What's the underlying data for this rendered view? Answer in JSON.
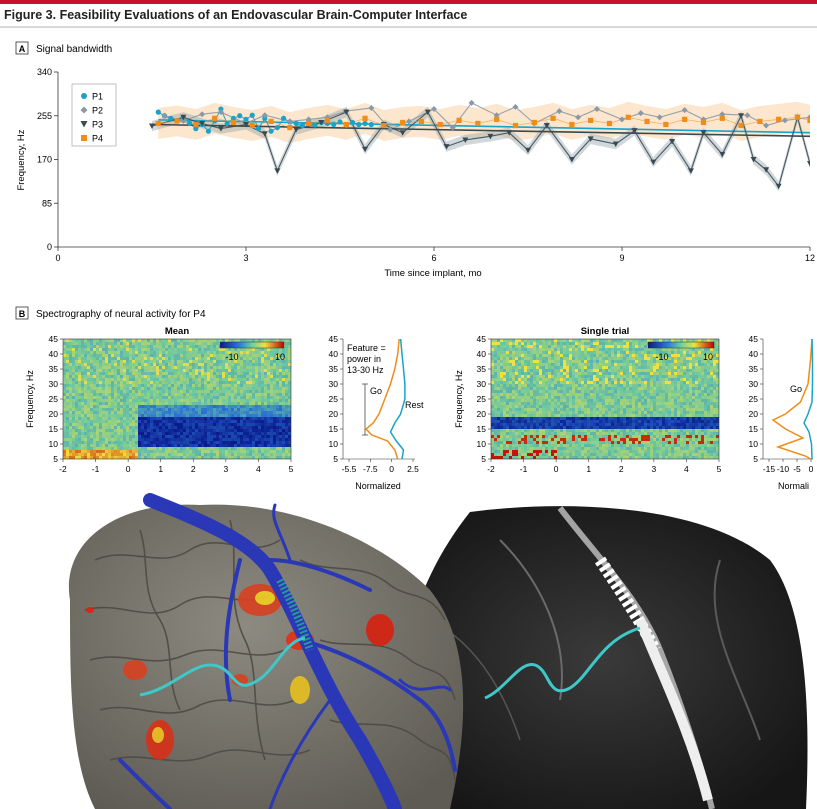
{
  "figure": {
    "title": "Figure 3. Feasibility Evaluations of an Endovascular Brain-Computer Interface",
    "accent_color": "#c8102e"
  },
  "panel_a": {
    "letter": "A",
    "heading": "Signal bandwidth",
    "chart_data": {
      "type": "line",
      "xlabel": "Time since implant, mo",
      "ylabel": "Frequency, Hz",
      "xlim": [
        0,
        12
      ],
      "ylim": [
        0,
        340
      ],
      "x_ticks": [
        0,
        3,
        6,
        9,
        12
      ],
      "y_ticks": [
        0,
        85,
        170,
        255,
        340
      ],
      "legend_placement": "top-left",
      "series": [
        {
          "name": "P1",
          "color": "#1aa3c8",
          "marker": "circle",
          "x": [
            1.6,
            1.7,
            1.8,
            1.9,
            2.0,
            2.1,
            2.2,
            2.3,
            2.4,
            2.5,
            2.6,
            2.7,
            2.8,
            2.9,
            3.0,
            3.1,
            3.2,
            3.3,
            3.4,
            3.5,
            3.6,
            3.7,
            3.8,
            3.9,
            4.0,
            4.1,
            4.2,
            4.3,
            4.4,
            4.5,
            4.6,
            4.7,
            4.8,
            4.9,
            5.0
          ],
          "y": [
            262,
            255,
            250,
            245,
            252,
            240,
            230,
            238,
            225,
            245,
            268,
            240,
            250,
            255,
            248,
            256,
            230,
            250,
            225,
            232,
            250,
            243,
            240,
            236,
            244,
            237,
            242,
            240,
            238,
            243,
            236,
            242,
            238,
            240,
            238
          ],
          "trend": [
            [
              1.6,
              247
            ],
            [
              12,
              222
            ]
          ]
        },
        {
          "name": "P2",
          "color": "#8a99a8",
          "marker": "diamond",
          "x": [
            1.7,
            2.0,
            2.3,
            2.6,
            3.0,
            3.3,
            3.7,
            4.0,
            4.3,
            4.6,
            5.0,
            5.3,
            5.6,
            6.0,
            6.3,
            6.6,
            7.0,
            7.3,
            7.6,
            8.0,
            8.3,
            8.6,
            9.0,
            9.3,
            9.6,
            10.0,
            10.3,
            10.6,
            11.0,
            11.3,
            11.6,
            12.0
          ],
          "y": [
            255,
            245,
            258,
            262,
            240,
            256,
            244,
            248,
            252,
            264,
            270,
            228,
            244,
            268,
            232,
            280,
            256,
            272,
            240,
            264,
            252,
            268,
            248,
            260,
            252,
            266,
            248,
            258,
            256,
            236,
            246,
            252
          ]
        },
        {
          "name": "P3",
          "color": "#3a4a52",
          "marker": "triangle",
          "x": [
            1.5,
            2.0,
            2.3,
            2.6,
            3.0,
            3.3,
            3.5,
            3.8,
            4.2,
            4.6,
            4.9,
            5.2,
            5.5,
            5.9,
            6.2,
            6.5,
            6.9,
            7.2,
            7.5,
            7.8,
            8.2,
            8.5,
            8.9,
            9.2,
            9.5,
            9.8,
            10.1,
            10.3,
            10.6,
            10.9,
            11.1,
            11.3,
            11.5,
            11.8,
            12.0
          ],
          "y": [
            235,
            252,
            240,
            230,
            238,
            220,
            148,
            228,
            242,
            262,
            190,
            238,
            222,
            262,
            195,
            208,
            215,
            222,
            188,
            236,
            170,
            210,
            200,
            226,
            165,
            205,
            148,
            222,
            180,
            255,
            170,
            150,
            118,
            252,
            162
          ],
          "trend": [
            [
              1.5,
              238
            ],
            [
              12,
              215
            ]
          ]
        },
        {
          "name": "P4",
          "color": "#f08c1a",
          "marker": "square",
          "x": [
            1.6,
            1.9,
            2.2,
            2.5,
            2.8,
            3.1,
            3.4,
            3.7,
            4.0,
            4.3,
            4.6,
            4.9,
            5.2,
            5.5,
            5.8,
            6.1,
            6.4,
            6.7,
            7.0,
            7.3,
            7.6,
            7.9,
            8.2,
            8.5,
            8.8,
            9.1,
            9.4,
            9.7,
            10.0,
            10.3,
            10.6,
            10.9,
            11.2,
            11.5,
            11.8,
            12.0
          ],
          "y": [
            240,
            245,
            238,
            250,
            242,
            236,
            244,
            232,
            240,
            246,
            238,
            250,
            236,
            242,
            244,
            238,
            246,
            240,
            248,
            236,
            242,
            250,
            238,
            246,
            240,
            252,
            244,
            238,
            248,
            242,
            250,
            236,
            244,
            248,
            252,
            246
          ]
        }
      ]
    }
  },
  "panel_b": {
    "letter": "B",
    "heading": "Spectrography of neural activity for P4",
    "mean": {
      "title": "Mean",
      "ylabel": "Frequency, Hz",
      "y_ticks": [
        5,
        10,
        15,
        20,
        25,
        30,
        35,
        40,
        45
      ],
      "x_ticks": [
        -2,
        -1,
        0,
        1,
        2,
        3,
        4,
        5
      ],
      "colorbar": [
        "-10",
        "10"
      ]
    },
    "single": {
      "title": "Single trial",
      "ylabel": "Frequency, Hz",
      "y_ticks": [
        5,
        10,
        15,
        20,
        25,
        30,
        35,
        40,
        45
      ],
      "x_ticks": [
        -2,
        -1,
        0,
        1,
        2,
        3,
        4,
        5
      ],
      "colorbar": [
        "-10",
        "10"
      ]
    },
    "profile1": {
      "y_ticks": [
        5,
        10,
        15,
        20,
        25,
        30,
        35,
        40,
        45
      ],
      "x_ticks": [
        "-5.5",
        "-7.5",
        "0",
        "2.5"
      ],
      "xlabel": "Normalized",
      "feature_text": [
        "Feature =",
        "power in",
        "13-30 Hz"
      ],
      "go_label": "Go",
      "rest_label": "Rest"
    },
    "profile2": {
      "y_ticks": [
        5,
        10,
        15,
        20,
        25,
        30,
        35,
        40,
        45
      ],
      "x_ticks": [
        "-15",
        "-10",
        "-5",
        "0"
      ],
      "xlabel": "Normali",
      "go_label": "Go"
    }
  },
  "colors": {
    "go": "#f08c1a",
    "rest": "#1aa3c8",
    "brain": "#7d7a72",
    "vessel": "#2a38b8",
    "trace": "#3ec8c8",
    "xray_bg": "#2a2a2a"
  }
}
